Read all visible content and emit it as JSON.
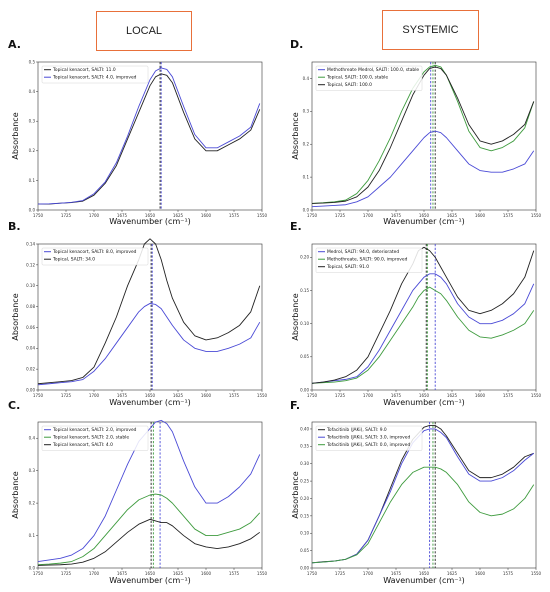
{
  "headers": {
    "left": "LOCAL",
    "right": "SYSTEMIC"
  },
  "colors": {
    "blue": "#4a4ad6",
    "black": "#222222",
    "green": "#3e9b3e",
    "header_border": "#e8703a"
  },
  "chart_data": [
    {
      "id": "A",
      "label": "A.",
      "type": "line",
      "xlabel": "Wavenumber (cm⁻¹)",
      "ylabel": "Absorbance",
      "xlim": [
        1750,
        1550
      ],
      "ylim": [
        0,
        0.5
      ],
      "xticks": [
        1750,
        1725,
        1700,
        1675,
        1650,
        1625,
        1600,
        1575,
        1550
      ],
      "yticks": [
        0.0,
        0.1,
        0.2,
        0.3,
        0.4,
        0.5
      ],
      "x": [
        1750,
        1740,
        1730,
        1720,
        1710,
        1700,
        1690,
        1680,
        1670,
        1660,
        1650,
        1645,
        1640,
        1635,
        1630,
        1620,
        1610,
        1600,
        1590,
        1580,
        1570,
        1560,
        1552
      ],
      "vlines": [
        {
          "x": 1641,
          "color": "black"
        },
        {
          "x": 1640,
          "color": "blue"
        }
      ],
      "series": [
        {
          "name": "Topical kenacort, SALTI: 11.0",
          "color": "black",
          "values": [
            0.02,
            0.02,
            0.023,
            0.025,
            0.03,
            0.05,
            0.09,
            0.15,
            0.24,
            0.33,
            0.42,
            0.45,
            0.46,
            0.455,
            0.43,
            0.33,
            0.24,
            0.2,
            0.2,
            0.22,
            0.24,
            0.27,
            0.34
          ]
        },
        {
          "name": "Topical kenacort, SALTI: 4.0, improved",
          "color": "blue",
          "values": [
            0.02,
            0.021,
            0.023,
            0.026,
            0.032,
            0.055,
            0.095,
            0.16,
            0.25,
            0.35,
            0.44,
            0.47,
            0.48,
            0.475,
            0.45,
            0.35,
            0.255,
            0.21,
            0.21,
            0.23,
            0.25,
            0.28,
            0.36
          ]
        }
      ]
    },
    {
      "id": "B",
      "label": "B.",
      "type": "line",
      "xlabel": "Wavenumber (cm⁻¹)",
      "ylabel": "Absorbance",
      "xlim": [
        1750,
        1550
      ],
      "ylim": [
        0,
        0.14
      ],
      "xticks": [
        1750,
        1725,
        1700,
        1675,
        1650,
        1625,
        1600,
        1575,
        1550
      ],
      "yticks": [
        0.0,
        0.02,
        0.04,
        0.06,
        0.08,
        0.1,
        0.12,
        0.14
      ],
      "x": [
        1750,
        1740,
        1730,
        1720,
        1710,
        1700,
        1690,
        1680,
        1670,
        1660,
        1655,
        1650,
        1645,
        1640,
        1635,
        1630,
        1620,
        1610,
        1600,
        1590,
        1580,
        1570,
        1560,
        1552
      ],
      "vlines": [
        {
          "x": 1649,
          "color": "black"
        },
        {
          "x": 1648,
          "color": "blue"
        }
      ],
      "series": [
        {
          "name": "Topical kenacort, SALTI: 8.0, improved",
          "color": "blue",
          "values": [
            0.005,
            0.006,
            0.007,
            0.008,
            0.01,
            0.018,
            0.03,
            0.045,
            0.06,
            0.075,
            0.08,
            0.083,
            0.082,
            0.078,
            0.07,
            0.062,
            0.048,
            0.04,
            0.037,
            0.037,
            0.04,
            0.044,
            0.05,
            0.065
          ]
        },
        {
          "name": "Topical, SALTI: 34.0",
          "color": "black",
          "values": [
            0.006,
            0.007,
            0.008,
            0.009,
            0.012,
            0.022,
            0.045,
            0.07,
            0.1,
            0.125,
            0.14,
            0.145,
            0.14,
            0.125,
            0.105,
            0.088,
            0.065,
            0.052,
            0.048,
            0.05,
            0.055,
            0.062,
            0.075,
            0.1
          ]
        }
      ]
    },
    {
      "id": "C",
      "label": "C.",
      "type": "line",
      "xlabel": "Wavenumber (cm⁻¹)",
      "ylabel": "Absorbance",
      "xlim": [
        1750,
        1550
      ],
      "ylim": [
        0,
        0.45
      ],
      "xticks": [
        1750,
        1725,
        1700,
        1675,
        1650,
        1625,
        1600,
        1575,
        1550
      ],
      "yticks": [
        0.0,
        0.1,
        0.2,
        0.3,
        0.4
      ],
      "x": [
        1750,
        1740,
        1730,
        1720,
        1710,
        1700,
        1690,
        1680,
        1670,
        1660,
        1650,
        1645,
        1640,
        1635,
        1630,
        1620,
        1610,
        1600,
        1590,
        1580,
        1570,
        1560,
        1552
      ],
      "vlines": [
        {
          "x": 1649,
          "color": "black"
        },
        {
          "x": 1647,
          "color": "green"
        },
        {
          "x": 1641,
          "color": "blue"
        }
      ],
      "series": [
        {
          "name": "Topical kenacort, SALTI: 2.0, improved",
          "color": "blue",
          "values": [
            0.02,
            0.025,
            0.03,
            0.04,
            0.06,
            0.1,
            0.16,
            0.24,
            0.32,
            0.39,
            0.43,
            0.45,
            0.455,
            0.445,
            0.42,
            0.33,
            0.25,
            0.2,
            0.2,
            0.22,
            0.25,
            0.29,
            0.35
          ]
        },
        {
          "name": "Topical kenacort, SALTI: 2.0, stable",
          "color": "green",
          "values": [
            0.01,
            0.012,
            0.015,
            0.02,
            0.035,
            0.06,
            0.1,
            0.14,
            0.18,
            0.21,
            0.225,
            0.228,
            0.225,
            0.215,
            0.2,
            0.16,
            0.12,
            0.1,
            0.1,
            0.11,
            0.12,
            0.14,
            0.17
          ]
        },
        {
          "name": "Topical kenacort, SALTI: 4.0",
          "color": "black",
          "values": [
            0.008,
            0.009,
            0.01,
            0.012,
            0.018,
            0.03,
            0.05,
            0.08,
            0.11,
            0.135,
            0.15,
            0.145,
            0.14,
            0.14,
            0.13,
            0.1,
            0.075,
            0.065,
            0.06,
            0.065,
            0.075,
            0.09,
            0.11
          ]
        }
      ]
    },
    {
      "id": "D",
      "label": "D.",
      "type": "line",
      "xlabel": "Wavenumber (cm⁻¹)",
      "ylabel": "Absorbance",
      "xlim": [
        1750,
        1550
      ],
      "ylim": [
        0,
        0.45
      ],
      "xticks": [
        1750,
        1725,
        1700,
        1675,
        1650,
        1625,
        1600,
        1575,
        1550
      ],
      "yticks": [
        0.0,
        0.1,
        0.2,
        0.3,
        0.4
      ],
      "x": [
        1750,
        1740,
        1730,
        1720,
        1710,
        1700,
        1690,
        1680,
        1670,
        1660,
        1650,
        1645,
        1640,
        1635,
        1630,
        1620,
        1610,
        1600,
        1590,
        1580,
        1570,
        1560,
        1552
      ],
      "vlines": [
        {
          "x": 1644,
          "color": "blue"
        },
        {
          "x": 1642,
          "color": "green"
        },
        {
          "x": 1640,
          "color": "black"
        }
      ],
      "series": [
        {
          "name": "Methothreate Medrol, SALTI: 100.0, stable",
          "color": "blue",
          "values": [
            0.01,
            0.012,
            0.014,
            0.016,
            0.025,
            0.04,
            0.07,
            0.1,
            0.14,
            0.18,
            0.22,
            0.235,
            0.24,
            0.235,
            0.22,
            0.18,
            0.14,
            0.12,
            0.115,
            0.115,
            0.125,
            0.14,
            0.18
          ]
        },
        {
          "name": "Topical, SALTI: 100.0, stable",
          "color": "green",
          "values": [
            0.02,
            0.022,
            0.025,
            0.03,
            0.05,
            0.09,
            0.15,
            0.22,
            0.3,
            0.37,
            0.42,
            0.435,
            0.44,
            0.435,
            0.41,
            0.33,
            0.24,
            0.19,
            0.18,
            0.19,
            0.21,
            0.25,
            0.33
          ]
        },
        {
          "name": "Topical, SALTI: 100.0",
          "color": "black",
          "values": [
            0.02,
            0.021,
            0.023,
            0.027,
            0.04,
            0.07,
            0.12,
            0.19,
            0.27,
            0.35,
            0.41,
            0.43,
            0.435,
            0.43,
            0.41,
            0.34,
            0.26,
            0.21,
            0.2,
            0.21,
            0.23,
            0.26,
            0.33
          ]
        }
      ]
    },
    {
      "id": "E",
      "label": "E.",
      "type": "line",
      "xlabel": "Wavenumber (cm⁻¹)",
      "ylabel": "Absorbance",
      "xlim": [
        1750,
        1550
      ],
      "ylim": [
        0,
        0.22
      ],
      "xticks": [
        1750,
        1725,
        1700,
        1675,
        1650,
        1625,
        1600,
        1575,
        1550
      ],
      "yticks": [
        0.0,
        0.05,
        0.1,
        0.15,
        0.2
      ],
      "x": [
        1750,
        1740,
        1730,
        1720,
        1710,
        1700,
        1690,
        1680,
        1670,
        1660,
        1655,
        1650,
        1645,
        1640,
        1635,
        1630,
        1620,
        1610,
        1600,
        1590,
        1580,
        1570,
        1560,
        1552
      ],
      "vlines": [
        {
          "x": 1648,
          "color": "black"
        },
        {
          "x": 1647,
          "color": "green"
        },
        {
          "x": 1640,
          "color": "blue"
        }
      ],
      "series": [
        {
          "name": "Medrol, SALTI: 94.0, deteriorated",
          "color": "blue",
          "values": [
            0.01,
            0.012,
            0.014,
            0.016,
            0.02,
            0.035,
            0.06,
            0.09,
            0.12,
            0.15,
            0.16,
            0.17,
            0.175,
            0.175,
            0.17,
            0.16,
            0.13,
            0.11,
            0.1,
            0.1,
            0.105,
            0.115,
            0.13,
            0.16
          ]
        },
        {
          "name": "Methothreate, SALTI: 90.0, improved",
          "color": "green",
          "values": [
            0.01,
            0.011,
            0.012,
            0.014,
            0.018,
            0.03,
            0.05,
            0.075,
            0.1,
            0.125,
            0.14,
            0.15,
            0.155,
            0.15,
            0.145,
            0.135,
            0.11,
            0.09,
            0.08,
            0.078,
            0.083,
            0.09,
            0.1,
            0.12
          ]
        },
        {
          "name": "Topical, SALTI: 91.0",
          "color": "black",
          "values": [
            0.01,
            0.012,
            0.015,
            0.02,
            0.03,
            0.05,
            0.085,
            0.12,
            0.16,
            0.19,
            0.21,
            0.215,
            0.21,
            0.2,
            0.185,
            0.17,
            0.14,
            0.12,
            0.115,
            0.12,
            0.13,
            0.145,
            0.17,
            0.21
          ]
        }
      ]
    },
    {
      "id": "F",
      "label": "F.",
      "type": "line",
      "xlabel": "Wavenumber (cm⁻¹)",
      "ylabel": "Absorbance",
      "xlim": [
        1750,
        1550
      ],
      "ylim": [
        0.0,
        0.42
      ],
      "xticks": [
        1750,
        1725,
        1700,
        1675,
        1650,
        1625,
        1600,
        1575,
        1550
      ],
      "yticks": [
        0.0,
        0.05,
        0.1,
        0.15,
        0.2,
        0.25,
        0.3,
        0.35,
        0.4
      ],
      "x": [
        1750,
        1740,
        1730,
        1720,
        1710,
        1700,
        1690,
        1680,
        1670,
        1660,
        1650,
        1645,
        1640,
        1635,
        1630,
        1620,
        1610,
        1600,
        1590,
        1580,
        1570,
        1560,
        1552
      ],
      "vlines": [
        {
          "x": 1645,
          "color": "blue"
        },
        {
          "x": 1642,
          "color": "green"
        },
        {
          "x": 1640,
          "color": "black"
        }
      ],
      "series": [
        {
          "name": "Tofacitinib (JAKi), SALTI: 9.0",
          "color": "black",
          "values": [
            0.015,
            0.018,
            0.02,
            0.025,
            0.04,
            0.08,
            0.15,
            0.23,
            0.31,
            0.37,
            0.405,
            0.41,
            0.41,
            0.4,
            0.38,
            0.33,
            0.28,
            0.26,
            0.26,
            0.27,
            0.29,
            0.32,
            0.33
          ]
        },
        {
          "name": "Tofacitinib (JAKi), SALTI: 3.0, improved",
          "color": "blue",
          "values": [
            0.015,
            0.017,
            0.02,
            0.025,
            0.04,
            0.08,
            0.15,
            0.22,
            0.3,
            0.36,
            0.395,
            0.4,
            0.4,
            0.39,
            0.375,
            0.32,
            0.27,
            0.25,
            0.25,
            0.26,
            0.28,
            0.31,
            0.33
          ]
        },
        {
          "name": "Tofacitinib (JAKi), SALTI: 0.0, improved",
          "color": "green",
          "values": [
            0.015,
            0.017,
            0.02,
            0.025,
            0.038,
            0.07,
            0.13,
            0.19,
            0.24,
            0.275,
            0.29,
            0.29,
            0.29,
            0.285,
            0.275,
            0.24,
            0.19,
            0.16,
            0.15,
            0.155,
            0.17,
            0.2,
            0.24
          ]
        }
      ]
    }
  ]
}
